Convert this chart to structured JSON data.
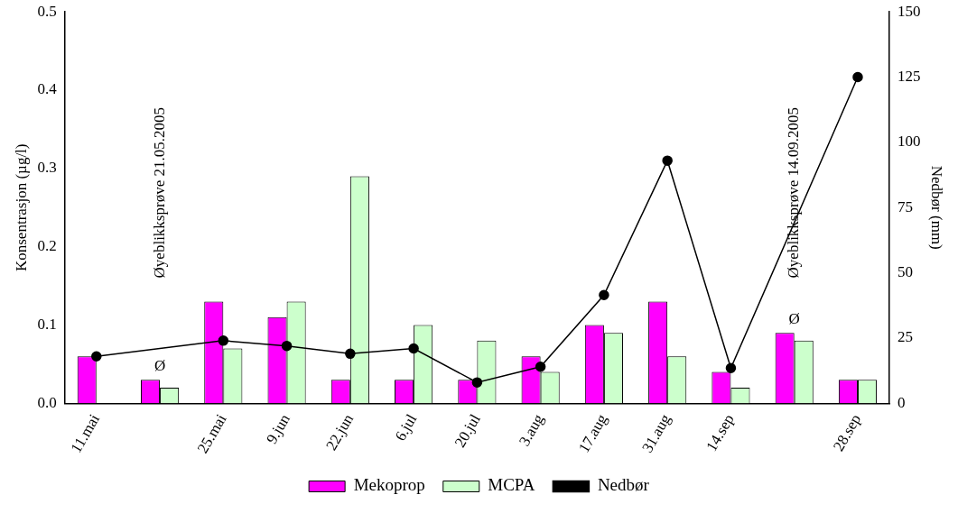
{
  "chart_data": {
    "type": "bar",
    "categories": [
      "11.mai",
      null,
      "25.mai",
      "9.jun",
      "22.jun",
      "6.jul",
      "20.jul",
      "3.aug",
      "17.aug",
      "31.aug",
      "14.sep",
      null,
      "28.sep"
    ],
    "series": [
      {
        "name": "Mekoprop",
        "color": "#ff00ff",
        "values": [
          0.06,
          0.03,
          0.13,
          0.11,
          0.03,
          0.03,
          0.03,
          0.06,
          0.1,
          0.13,
          0.04,
          0.09,
          0.03
        ]
      },
      {
        "name": "MCPA",
        "color": "#ccffcc",
        "values": [
          null,
          0.02,
          0.07,
          0.13,
          0.29,
          0.1,
          0.08,
          0.04,
          0.09,
          0.06,
          0.02,
          0.08,
          0.03
        ]
      },
      {
        "name": "Nedbør",
        "type": "line",
        "axis": "y2",
        "color": "#000000",
        "values": [
          18,
          null,
          24,
          22,
          19,
          21,
          8,
          14,
          41.5,
          93,
          13.5,
          null,
          125
        ]
      }
    ],
    "ylabel": "Konsentrasjon (µg/l)",
    "y2label": "Nedbør (mm)",
    "ylim": [
      0,
      0.5
    ],
    "yticks": [
      {
        "value": 0,
        "label": "0.0"
      },
      0.1,
      0.2,
      0.3,
      0.4,
      0.5
    ],
    "y2lim": [
      0,
      150
    ],
    "y2ticks": [
      0,
      25,
      50,
      75,
      100,
      125,
      150
    ],
    "annotations": [
      "Øyeblikksprøve 21.05.2005",
      "Ø",
      "Øyeblikksprøve 14.09.2005",
      "Ø"
    ],
    "legend": "bottom",
    "marker": "circle",
    "grid": false
  }
}
